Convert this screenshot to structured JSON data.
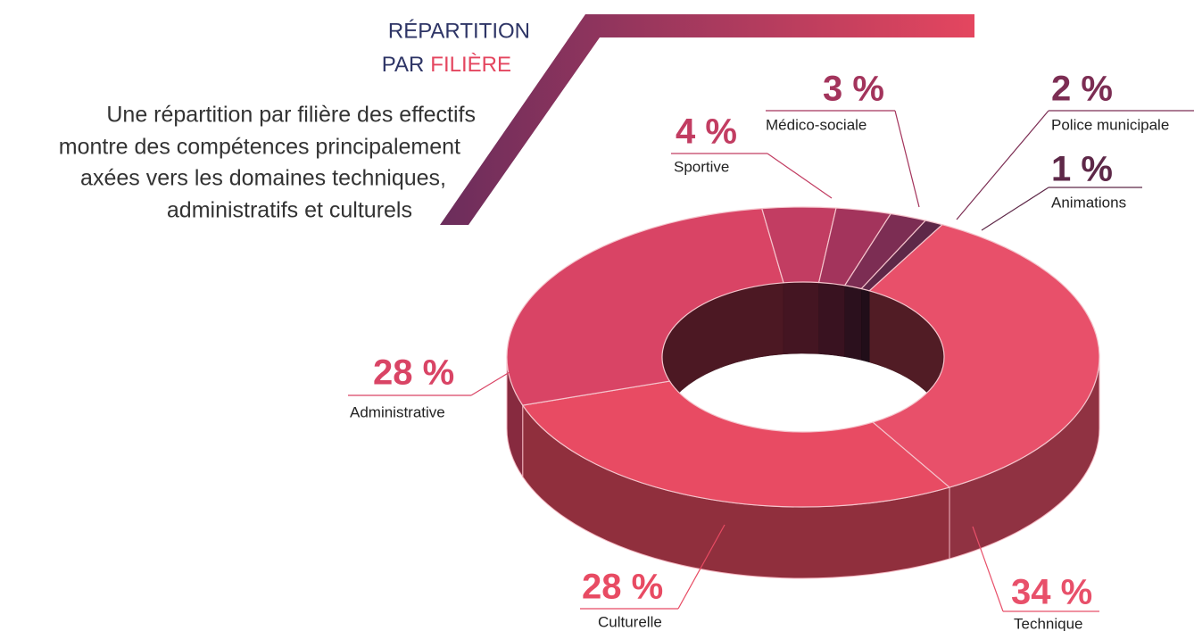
{
  "chart_data": {
    "type": "pie",
    "donut": true,
    "title": [
      "RÉPARTITION",
      "PAR",
      "FILIÈRE"
    ],
    "subtitle": [
      "Une répartition par filière des effectifs",
      "montre des compétences principalement",
      "axées vers les domaines techniques,",
      "administratifs et culturels"
    ],
    "categories": [
      "Technique",
      "Culturelle",
      "Administrative",
      "Sportive",
      "Médico-sociale",
      "Police municipale",
      "Animations"
    ],
    "values": [
      34,
      28,
      28,
      4,
      3,
      2,
      1
    ],
    "value_labels": [
      "34 %",
      "28 %",
      "28 %",
      "4 %",
      "3 %",
      "2 %",
      "1 %"
    ],
    "colors": [
      "#e8506a",
      "#e84b63",
      "#d94465",
      "#c23d62",
      "#a3345c",
      "#7c2d53",
      "#5e2848"
    ]
  }
}
